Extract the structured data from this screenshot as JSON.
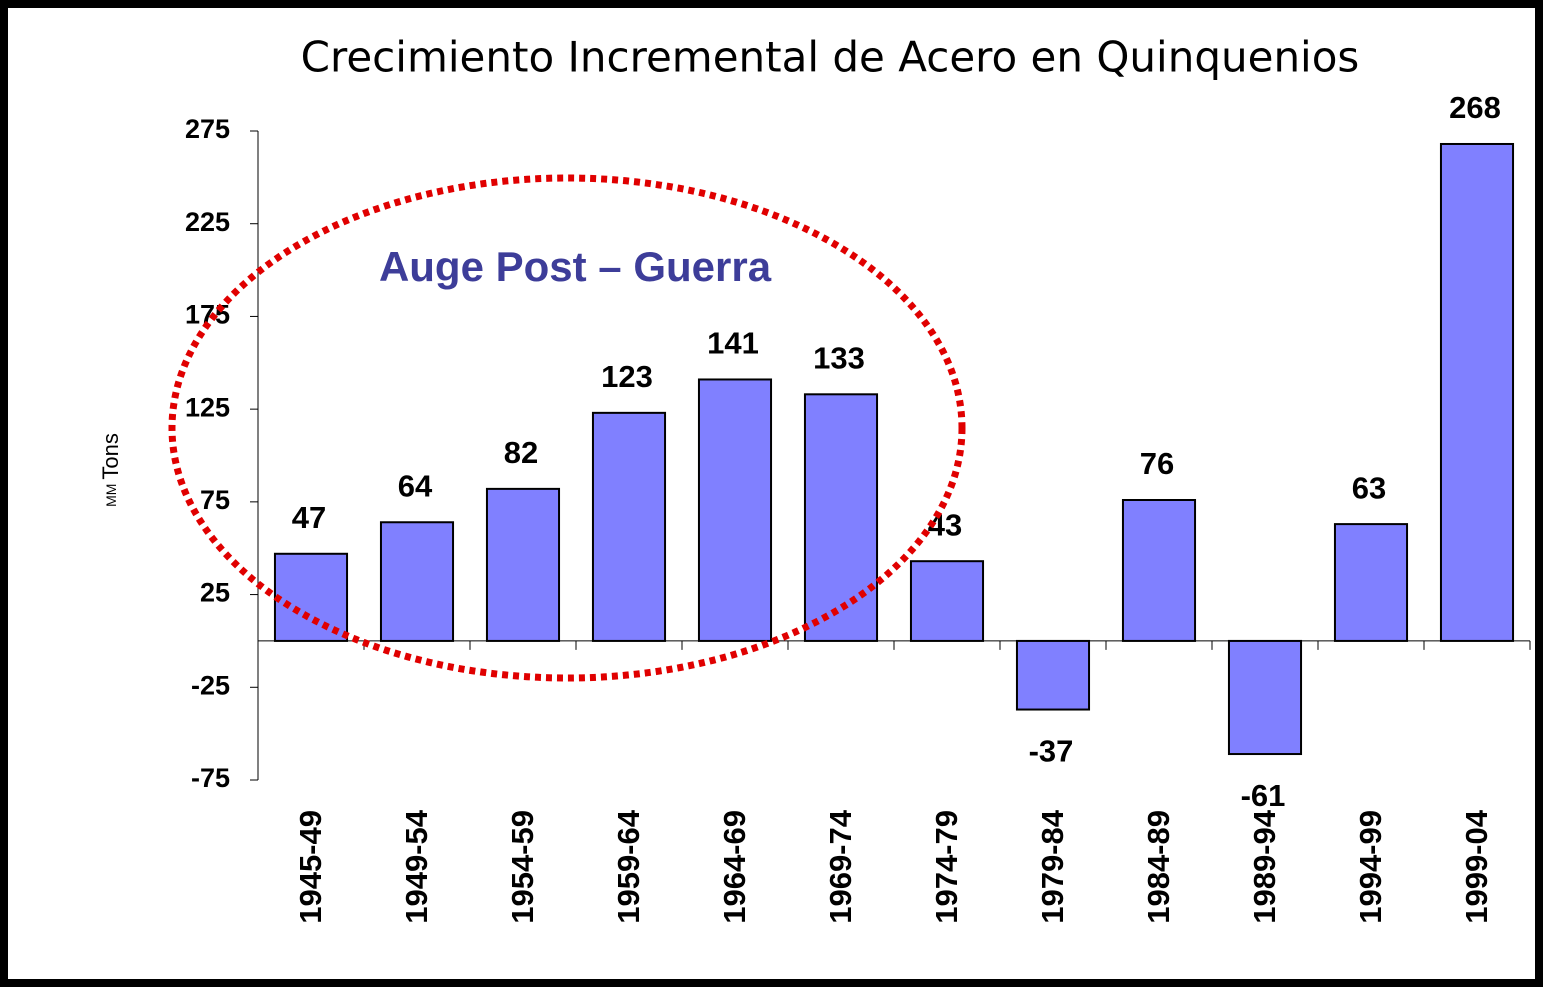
{
  "chart_data": {
    "type": "bar",
    "title": "Crecimiento Incremental de Acero en Quinquenios",
    "ylabel": {
      "prefix": "MM",
      "text": "Tons"
    },
    "annotation": "Auge Post – Guerra",
    "categories": [
      "1945-49",
      "1949-54",
      "1954-59",
      "1959-64",
      "1964-69",
      "1969-74",
      "1974-79",
      "1979-84",
      "1984-89",
      "1989-94",
      "1994-99",
      "1999-04"
    ],
    "values": [
      47,
      64,
      82,
      123,
      141,
      133,
      43,
      -37,
      76,
      -61,
      63,
      268
    ],
    "color": "#8080ff",
    "ylim": [
      -75,
      275
    ],
    "yticks": [
      -75,
      -25,
      25,
      75,
      125,
      175,
      225,
      275
    ],
    "grid": false
  }
}
